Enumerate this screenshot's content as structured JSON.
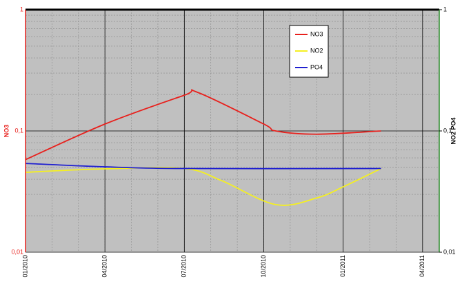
{
  "chart_data": {
    "type": "line",
    "y_label": "NO3",
    "y2_label": "NO2 PO4",
    "log_y": true,
    "grid": true,
    "minor_grid": true,
    "legend": "upper-right",
    "xlim": [
      0,
      15.63
    ],
    "xticks": [
      {
        "value": 0,
        "label": "01/2010"
      },
      {
        "value": 3,
        "label": "04/2010"
      },
      {
        "value": 6,
        "label": "07/2010"
      },
      {
        "value": 9,
        "label": "10/2010"
      },
      {
        "value": 12,
        "label": "01/2011"
      },
      {
        "value": 15,
        "label": "04/2011"
      }
    ],
    "ylim": [
      0.01,
      1
    ],
    "yticks": [
      {
        "value": 0.01,
        "label": "0,01"
      },
      {
        "value": 0.1,
        "label": "0,1"
      },
      1
    ],
    "y2lim": [
      0.01,
      1
    ],
    "y2ticks": [
      {
        "value": 0.01,
        "label": "0,01"
      },
      {
        "value": 0.1,
        "label": "0,1"
      },
      1
    ],
    "series": [
      {
        "name": "NO3",
        "color": "#e8201c",
        "x": [
          0,
          3,
          6,
          6.5,
          9,
          9.45,
          11,
          13.43
        ],
        "values": [
          0.058,
          0.114,
          0.197,
          0.208,
          0.114,
          0.1,
          0.094,
          0.1
        ]
      },
      {
        "name": "NO2",
        "color": "#f5f020",
        "axis": "y2",
        "x": [
          0,
          3,
          6,
          7.4,
          9.45,
          11,
          12.05,
          13.43
        ],
        "values": [
          0.0456,
          0.0487,
          0.049,
          0.039,
          0.0247,
          0.028,
          0.035,
          0.049
        ]
      },
      {
        "name": "PO4",
        "color": "#2020d0",
        "axis": "y2",
        "x": [
          0,
          3,
          6,
          13.43
        ],
        "values": [
          0.054,
          0.0506,
          0.049,
          0.049
        ]
      }
    ]
  }
}
